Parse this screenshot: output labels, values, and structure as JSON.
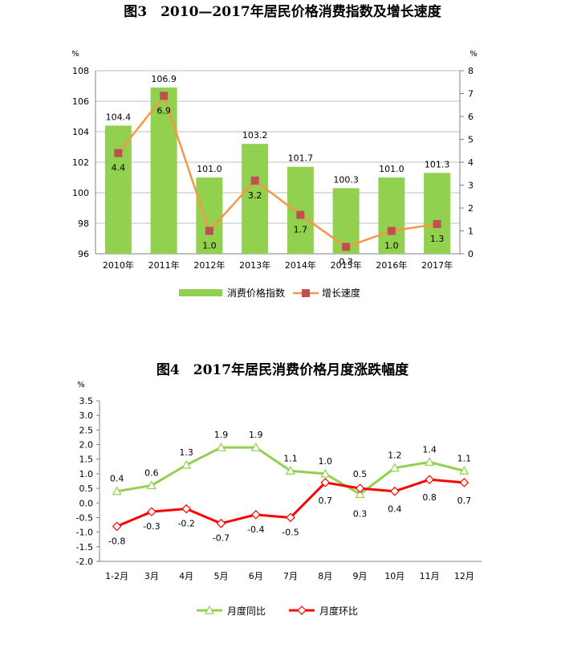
{
  "chart_data": [
    {
      "type": "bar",
      "title": "图3　2010—2017年居民价格消费指数及增长速度",
      "categories": [
        "2010年",
        "2011年",
        "2012年",
        "2013年",
        "2014年",
        "2015年",
        "2016年",
        "2017年"
      ],
      "y_left_unit": "%",
      "y_right_unit": "%",
      "ylim_left": [
        96,
        108
      ],
      "yticks_left": [
        "96",
        "98",
        "100",
        "102",
        "104",
        "106",
        "108"
      ],
      "ylim_right": [
        0,
        8
      ],
      "yticks_right": [
        "0",
        "1",
        "2",
        "3",
        "4",
        "5",
        "6",
        "7",
        "8"
      ],
      "series": [
        {
          "name": "消费价格指数",
          "type": "bar",
          "axis": "left",
          "color": "#92D050",
          "values": [
            104.4,
            106.9,
            101.0,
            103.2,
            101.7,
            100.3,
            101.0,
            101.3
          ],
          "labels": [
            "104.4",
            "106.9",
            "101.0",
            "103.2",
            "101.7",
            "100.3",
            "101.0",
            "101.3"
          ]
        },
        {
          "name": "增长速度",
          "type": "line",
          "axis": "right",
          "color": "#F79646",
          "marker_color": "#C0504D",
          "values": [
            4.4,
            6.9,
            1.0,
            3.2,
            1.7,
            0.3,
            1.0,
            1.3
          ],
          "labels": [
            "4.4",
            "6.9",
            "1.0",
            "3.2",
            "1.7",
            "0.3",
            "1.0",
            "1.3"
          ]
        }
      ],
      "grid": true,
      "legend": "bottom"
    },
    {
      "type": "line",
      "title": "图4　2017年居民消费价格月度涨跌幅度",
      "categories": [
        "1-2月",
        "3月",
        "4月",
        "5月",
        "6月",
        "7月",
        "8月",
        "9月",
        "10月",
        "11月",
        "12月"
      ],
      "y_unit": "%",
      "ylim": [
        -2.0,
        3.5
      ],
      "yticks": [
        "3.5",
        "3.0",
        "2.5",
        "2.0",
        "1.5",
        "1.0",
        "0.5",
        "0.0",
        "-0.5",
        "-1.0",
        "-1.5",
        "-2.0"
      ],
      "series": [
        {
          "name": "月度同比",
          "color": "#92D050",
          "marker": "triangle",
          "values": [
            0.4,
            0.6,
            1.3,
            1.9,
            1.9,
            1.1,
            1.0,
            0.3,
            1.2,
            1.4,
            1.1
          ],
          "labels": [
            "0.4",
            "0.6",
            "1.3",
            "1.9",
            "1.9",
            "1.1",
            "1.0",
            "0.3",
            "1.2",
            "1.4",
            "1.1"
          ]
        },
        {
          "name": "月度环比",
          "color": "#FF0000",
          "marker": "diamond",
          "values": [
            -0.8,
            -0.3,
            -0.2,
            -0.7,
            -0.4,
            -0.5,
            0.7,
            0.5,
            0.4,
            0.8,
            0.7
          ],
          "labels": [
            "-0.8",
            "-0.3",
            "-0.2",
            "-0.7",
            "-0.4",
            "-0.5",
            "0.7",
            "0.5",
            "0.4",
            "0.8",
            "0.7"
          ]
        }
      ],
      "grid": false,
      "legend": "bottom"
    }
  ]
}
